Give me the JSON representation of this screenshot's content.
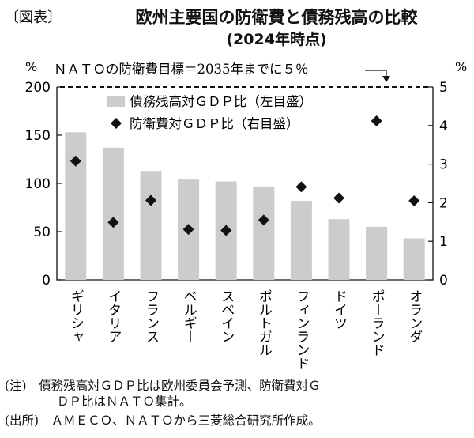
{
  "header": {
    "tag": "〔図表〕",
    "title": "欧州主要国の防衛費と債務残高の比較",
    "subtitle": "(2024年時点)"
  },
  "notes": {
    "note_line1": "(注)　債務残高対ＧＤＰ比は欧州委員会予測、防衛費対Ｇ",
    "note_line2": "ＤＰ比はＮＡＴＯ集計。",
    "source": "(出所)　ＡＭＥＣＯ、ＮＡＴＯから三菱総合研究所作成。"
  },
  "chart_data": {
    "type": "bar",
    "categories": [
      "ギリシャ",
      "イタリア",
      "フランス",
      "ベルギー",
      "スペイン",
      "ポルトガル",
      "フィンランド",
      "ドイツ",
      "ポーランド",
      "オランダ"
    ],
    "series": [
      {
        "name": "債務残高対ＧＤＰ比（左目盛）",
        "type": "bar",
        "axis": "left",
        "color": "#cccccc",
        "values": [
          153,
          137,
          113,
          104,
          102,
          96,
          82,
          63,
          55,
          43
        ]
      },
      {
        "name": "防衛費対ＧＤＰ比（右目盛）",
        "type": "scatter",
        "marker": "diamond",
        "axis": "right",
        "color": "#111111",
        "values": [
          3.08,
          1.49,
          2.06,
          1.31,
          1.28,
          1.55,
          2.41,
          2.12,
          4.12,
          2.05
        ]
      }
    ],
    "y_left": {
      "unit": "%",
      "min": 0,
      "max": 200,
      "ticks": [
        0,
        50,
        100,
        150,
        200
      ]
    },
    "y_right": {
      "unit": "%",
      "min": 0,
      "max": 5,
      "ticks": [
        0,
        1,
        2,
        3,
        4,
        5
      ]
    },
    "reference_line": {
      "axis": "right",
      "value": 5,
      "label": "ＮＡＴＯの防衛費目標＝2035年までに５％"
    },
    "legend": {
      "placement": "top-center"
    },
    "grid": false
  }
}
